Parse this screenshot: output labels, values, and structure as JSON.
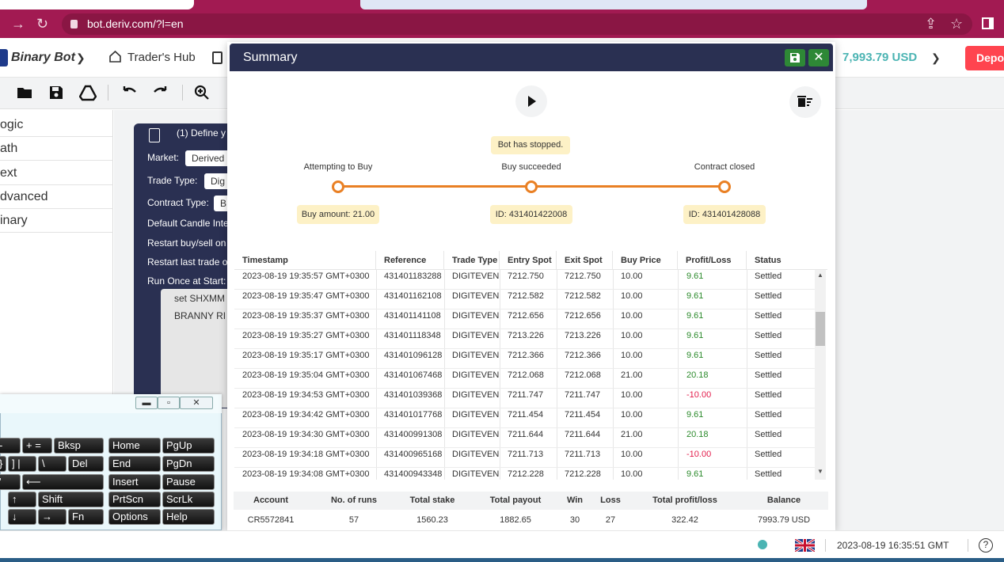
{
  "browser": {
    "url": "bot.deriv.com/?l=en"
  },
  "header": {
    "brand": "Binary Bot",
    "hub": "Trader's Hub",
    "balance": "7,993.79 USD",
    "deposit": "Depo"
  },
  "categories": [
    "ogic",
    "ath",
    "ext",
    "dvanced",
    "inary"
  ],
  "block": {
    "title": "(1) Define y",
    "market_label": "Market:",
    "market_value": "Derived",
    "trade_type_label": "Trade Type:",
    "trade_type_value": "Dig",
    "contract_type_label": "Contract Type:",
    "contract_type_value": "B",
    "candle_label": "Default Candle Inte",
    "restart_label": "Restart buy/sell on",
    "restart_last_label": "Restart last trade o",
    "run_once_label": "Run Once at Start:",
    "line1": "set SHXMM",
    "line2": "BRANNY RI"
  },
  "keyboard": {
    "rows": [
      [
        "-",
        "+ =",
        "Bksp",
        "Home",
        "PgUp"
      ],
      [
        "}",
        "] |",
        "\\",
        "Del",
        "End",
        "PgDn"
      ],
      [
        "'",
        "⟵",
        "Insert",
        "Pause"
      ],
      [
        "↑",
        "Shift",
        "PrtScn",
        "ScrLk"
      ],
      [
        "↓",
        "→",
        "Fn",
        "Options",
        "Help"
      ]
    ]
  },
  "summary": {
    "title": "Summary",
    "status": "Bot has stopped.",
    "steps": [
      {
        "label": "Attempting to Buy",
        "pill": "Buy amount: 21.00"
      },
      {
        "label": "Buy succeeded",
        "pill": "ID: 431401422008"
      },
      {
        "label": "Contract closed",
        "pill": "ID: 431401428088"
      }
    ],
    "columns": [
      "Timestamp",
      "Reference",
      "Trade Type",
      "Entry Spot",
      "Exit Spot",
      "Buy Price",
      "Profit/Loss",
      "Status"
    ],
    "rows": [
      [
        "2023-08-19 19:35:57 GMT+0300",
        "431401183288",
        "DIGITEVEN",
        "7212.750",
        "7212.750",
        "10.00",
        "9.61",
        "Settled"
      ],
      [
        "2023-08-19 19:35:47 GMT+0300",
        "431401162108",
        "DIGITEVEN",
        "7212.582",
        "7212.582",
        "10.00",
        "9.61",
        "Settled"
      ],
      [
        "2023-08-19 19:35:37 GMT+0300",
        "431401141108",
        "DIGITEVEN",
        "7212.656",
        "7212.656",
        "10.00",
        "9.61",
        "Settled"
      ],
      [
        "2023-08-19 19:35:27 GMT+0300",
        "431401118348",
        "DIGITEVEN",
        "7213.226",
        "7213.226",
        "10.00",
        "9.61",
        "Settled"
      ],
      [
        "2023-08-19 19:35:17 GMT+0300",
        "431401096128",
        "DIGITEVEN",
        "7212.366",
        "7212.366",
        "10.00",
        "9.61",
        "Settled"
      ],
      [
        "2023-08-19 19:35:04 GMT+0300",
        "431401067468",
        "DIGITEVEN",
        "7212.068",
        "7212.068",
        "21.00",
        "20.18",
        "Settled"
      ],
      [
        "2023-08-19 19:34:53 GMT+0300",
        "431401039368",
        "DIGITEVEN",
        "7211.747",
        "7211.747",
        "10.00",
        "-10.00",
        "Settled"
      ],
      [
        "2023-08-19 19:34:42 GMT+0300",
        "431401017768",
        "DIGITEVEN",
        "7211.454",
        "7211.454",
        "10.00",
        "9.61",
        "Settled"
      ],
      [
        "2023-08-19 19:34:30 GMT+0300",
        "431400991308",
        "DIGITEVEN",
        "7211.644",
        "7211.644",
        "21.00",
        "20.18",
        "Settled"
      ],
      [
        "2023-08-19 19:34:18 GMT+0300",
        "431400965168",
        "DIGITEVEN",
        "7211.713",
        "7211.713",
        "10.00",
        "-10.00",
        "Settled"
      ],
      [
        "2023-08-19 19:34:08 GMT+0300",
        "431400943348",
        "DIGITEVEN",
        "7212.228",
        "7212.228",
        "10.00",
        "9.61",
        "Settled"
      ]
    ],
    "stats_headers": [
      "Account",
      "No. of runs",
      "Total stake",
      "Total payout",
      "Win",
      "Loss",
      "Total profit/loss",
      "Balance"
    ],
    "stats_values": [
      "CR5572841",
      "57",
      "1560.23",
      "1882.65",
      "30",
      "27",
      "322.42",
      "7993.79 USD"
    ]
  },
  "footer": {
    "time": "2023-08-19 16:35:51 GMT"
  },
  "colors": {
    "accent": "#2a3052",
    "teal": "#4bb4b3",
    "orange": "#e98024",
    "profit": "#2b8a2b",
    "loss": "#e31c4b",
    "deposit": "#ff444f"
  }
}
